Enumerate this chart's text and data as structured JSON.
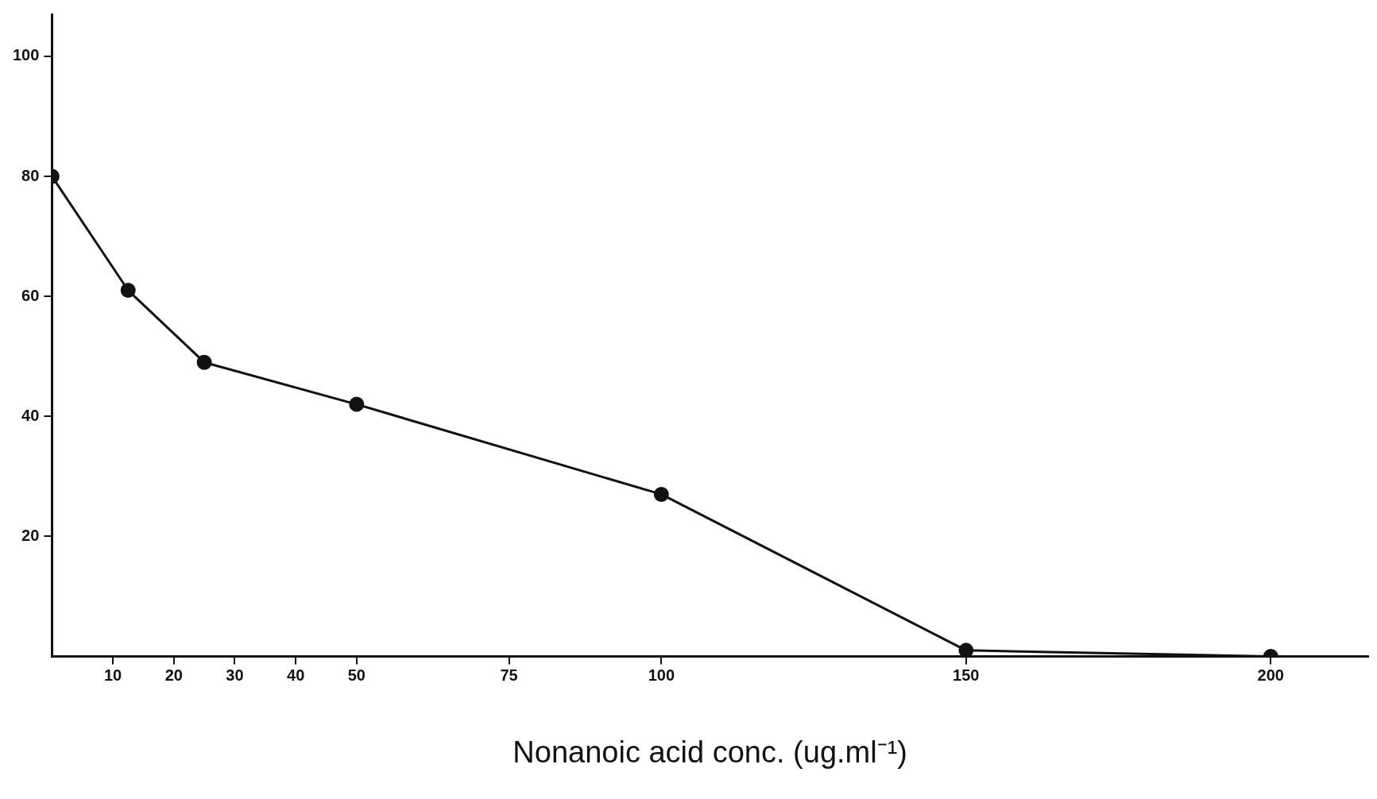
{
  "chart_data": {
    "type": "line",
    "xlabel": "Nonanoic acid conc. (ug.ml⁻¹)",
    "x": [
      0,
      12.5,
      25,
      50,
      100,
      150,
      200
    ],
    "series": [
      {
        "color": "#111111",
        "values": [
          80,
          61,
          49,
          42,
          27,
          1,
          0
        ]
      }
    ],
    "xlim": [
      0,
      216
    ],
    "xticks": [
      10,
      20,
      30,
      40,
      50,
      75,
      100,
      150,
      200
    ],
    "ylim": [
      0,
      107
    ],
    "yticks": [
      20,
      40,
      60,
      80,
      100
    ],
    "grid": false,
    "legend": false,
    "marker": "circle",
    "line_style": "solid"
  }
}
